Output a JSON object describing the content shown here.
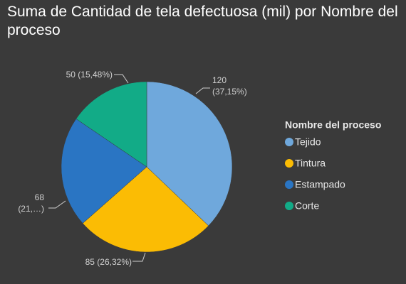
{
  "chart_data": {
    "type": "pie",
    "title": "Suma de Cantidad de tela defectuosa (mil) por Nombre del proceso",
    "legend_title": "Nombre del proceso",
    "categories": [
      "Tejido",
      "Tintura",
      "Estampado",
      "Corte"
    ],
    "values": [
      120,
      85,
      68,
      50
    ],
    "value_labels": [
      "120 (37,15%)",
      "85 (26,32%)",
      "68 (21,…)",
      "50 (15,48%)"
    ],
    "colors": [
      "#6fa8dc",
      "#fbbc04",
      "#2a75c3",
      "#12ab87"
    ],
    "legend": "right"
  }
}
